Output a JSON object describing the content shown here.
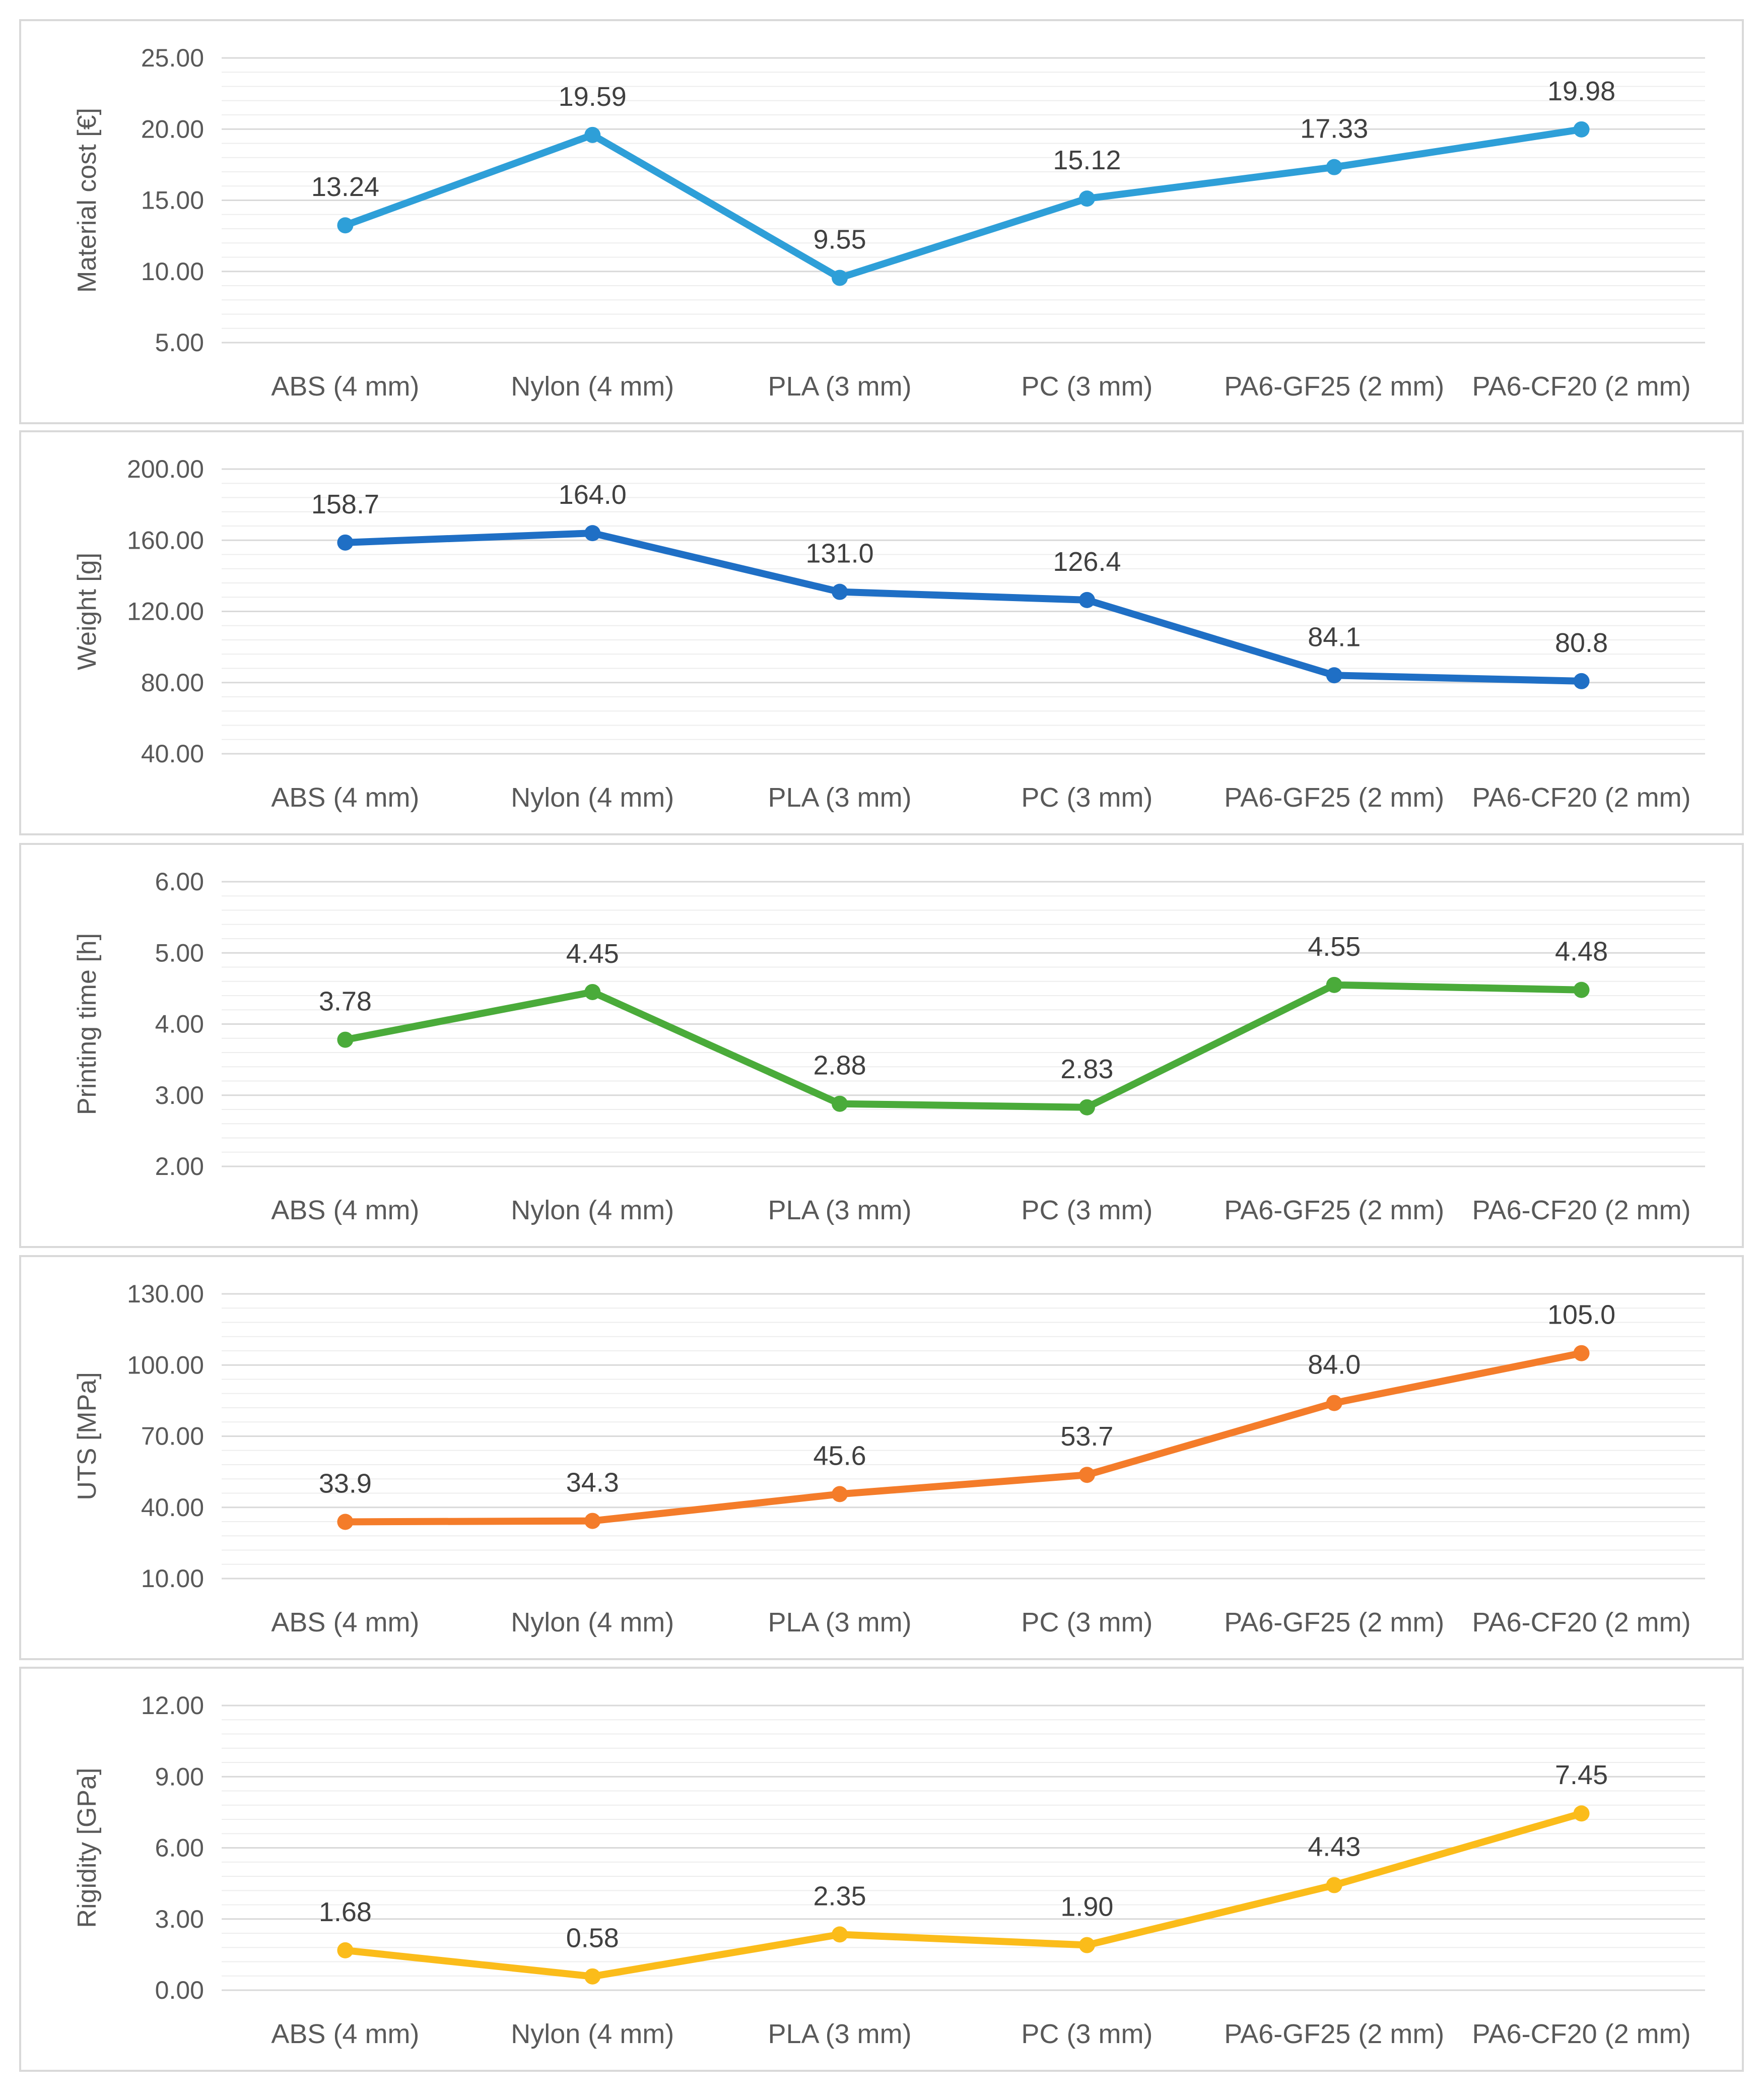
{
  "categories": [
    "ABS (4 mm)",
    "Nylon (4 mm)",
    "PLA (3 mm)",
    "PC (3 mm)",
    "PA6-GF25 (2 mm)",
    "PA6-CF20 (2 mm)"
  ],
  "chart_data": [
    {
      "type": "line",
      "ylabel": "Material cost [€]",
      "color": "#2e9fd8",
      "ylim": [
        5,
        25
      ],
      "yticks": [
        "5.00",
        "10.00",
        "15.00",
        "20.00",
        "25.00"
      ],
      "values": [
        13.24,
        19.59,
        9.55,
        15.12,
        17.33,
        19.98
      ],
      "labels": [
        "13.24",
        "19.59",
        "9.55",
        "15.12",
        "17.33",
        "19.98"
      ]
    },
    {
      "type": "line",
      "ylabel": "Weight [g]",
      "color": "#1f6fc5",
      "ylim": [
        40,
        200
      ],
      "yticks": [
        "40.00",
        "80.00",
        "120.00",
        "160.00",
        "200.00"
      ],
      "values": [
        158.7,
        164.0,
        131.0,
        126.4,
        84.1,
        80.8
      ],
      "labels": [
        "158.7",
        "164.0",
        "131.0",
        "126.4",
        "84.1",
        "80.8"
      ]
    },
    {
      "type": "line",
      "ylabel": "Printing time [h]",
      "color": "#4aab3a",
      "ylim": [
        2,
        6
      ],
      "yticks": [
        "2.00",
        "3.00",
        "4.00",
        "5.00",
        "6.00"
      ],
      "values": [
        3.78,
        4.45,
        2.88,
        2.83,
        4.55,
        4.48
      ],
      "labels": [
        "3.78",
        "4.45",
        "2.88",
        "2.83",
        "4.55",
        "4.48"
      ]
    },
    {
      "type": "line",
      "ylabel": "UTS [MPa]",
      "color": "#f47c2a",
      "ylim": [
        10,
        130
      ],
      "yticks": [
        "10.00",
        "40.00",
        "70.00",
        "100.00",
        "130.00"
      ],
      "values": [
        33.9,
        34.3,
        45.6,
        53.7,
        84.0,
        105.0
      ],
      "labels": [
        "33.9",
        "34.3",
        "45.6",
        "53.7",
        "84.0",
        "105.0"
      ]
    },
    {
      "type": "line",
      "ylabel": "Rigidity [GPa]",
      "color": "#fbbc1a",
      "ylim": [
        0,
        12
      ],
      "yticks": [
        "0.00",
        "3.00",
        "6.00",
        "9.00",
        "12.00"
      ],
      "values": [
        1.68,
        0.58,
        2.35,
        1.9,
        4.43,
        7.45
      ],
      "labels": [
        "1.68",
        "0.58",
        "2.35",
        "1.90",
        "4.43",
        "7.45"
      ]
    }
  ]
}
